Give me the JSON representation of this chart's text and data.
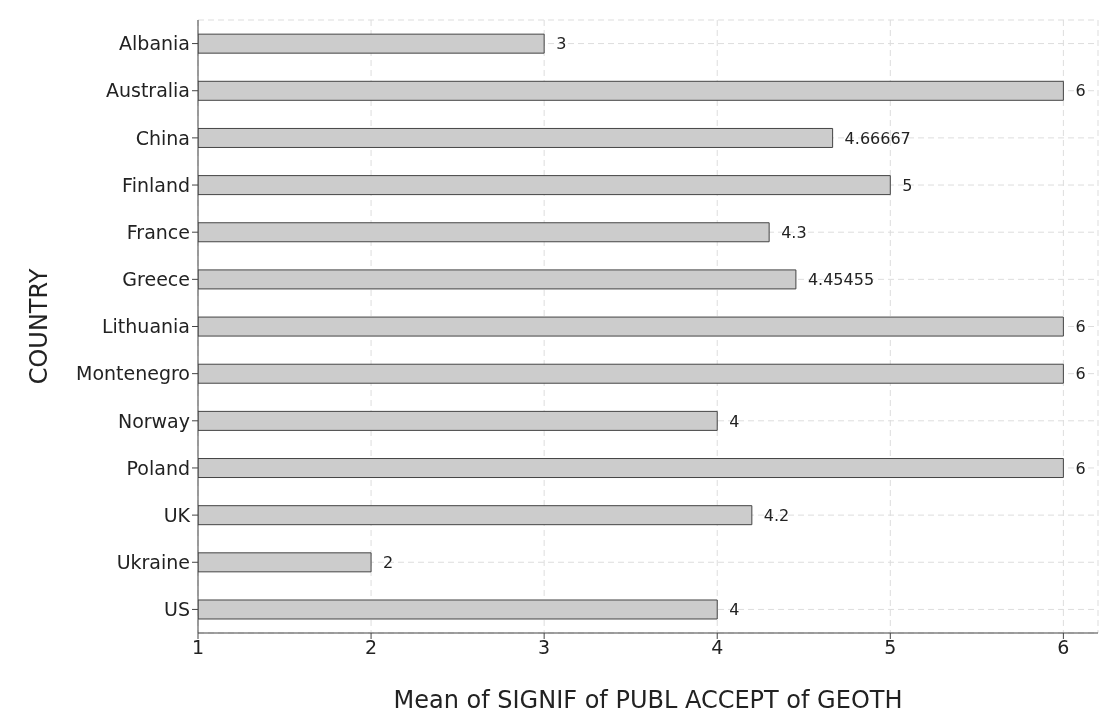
{
  "chart_data": {
    "type": "bar",
    "orientation": "horizontal",
    "xlabel": "Mean of SIGNIF of PUBL ACCEPT of GEOTH",
    "ylabel": "COUNTRY",
    "categories": [
      "Albania",
      "Australia",
      "China",
      "Finland",
      "France",
      "Greece",
      "Lithuania",
      "Montenegro",
      "Norway",
      "Poland",
      "UK",
      "Ukraine",
      "US"
    ],
    "values": [
      3,
      6,
      4.66667,
      5,
      4.3,
      4.45455,
      6,
      6,
      4,
      6,
      4.2,
      2,
      4
    ],
    "color": "#cccccc",
    "xlim": [
      1,
      6.2
    ],
    "xticks": [
      1,
      2,
      3,
      4,
      5,
      6
    ],
    "grid": true,
    "data_labels": true
  }
}
